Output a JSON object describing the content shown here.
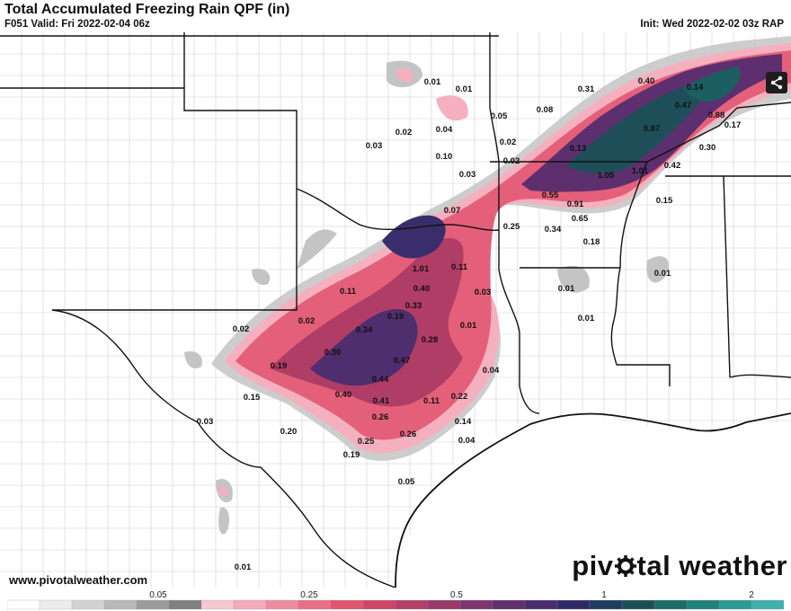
{
  "header": {
    "title": "Total Accumulated Freezing Rain QPF (in)",
    "valid": "F051 Valid: Fri 2022-02-04 06z",
    "init": "Init: Wed 2022-02-02 03z RAP"
  },
  "footer": {
    "website": "www.pivotalweather.com",
    "brand_left": "piv",
    "brand_right": "tal weather"
  },
  "legend": {
    "ticks": [
      "0.05",
      "0.25",
      "0.5",
      "1",
      "2"
    ],
    "colors": [
      "#ffffff",
      "#ececec",
      "#d2d2d2",
      "#b8b8b8",
      "#9c9c9c",
      "#808080",
      "#f7c8d2",
      "#f3aab9",
      "#ee8c9f",
      "#e96f86",
      "#e2556e",
      "#d04566",
      "#b53f67",
      "#993a6a",
      "#7c356d",
      "#602f6e",
      "#4a2d6d",
      "#2f2b67",
      "#1f3b5d",
      "#1d5055",
      "#1c6b66",
      "#1f827b",
      "#2e9a94",
      "#42b0ad"
    ]
  },
  "labels": [
    {
      "t": "0.01"
    },
    {
      "t": "0.01"
    },
    {
      "t": "0.31"
    },
    {
      "t": "0.40"
    },
    {
      "t": "0.14"
    },
    {
      "t": "0.47"
    },
    {
      "t": "0.88"
    },
    {
      "t": "0.17"
    },
    {
      "t": "0.05"
    },
    {
      "t": "0.08"
    },
    {
      "t": "0.02"
    },
    {
      "t": "0.04"
    },
    {
      "t": "0.03"
    },
    {
      "t": "0.87"
    },
    {
      "t": "0.02"
    },
    {
      "t": "0.13"
    },
    {
      "t": "0.30"
    },
    {
      "t": "0.10"
    },
    {
      "t": "0.02"
    },
    {
      "t": "1.05"
    },
    {
      "t": "1.01"
    },
    {
      "t": "0.42"
    },
    {
      "t": "0.03"
    },
    {
      "t": "0.55"
    },
    {
      "t": "0.91"
    },
    {
      "t": "0.15"
    },
    {
      "t": "0.07"
    },
    {
      "t": "0.65"
    },
    {
      "t": "0.25"
    },
    {
      "t": "0.34"
    },
    {
      "t": "0.18"
    },
    {
      "t": "1.01"
    },
    {
      "t": "0.11"
    },
    {
      "t": "0.01"
    },
    {
      "t": "0.40"
    },
    {
      "t": "0.11"
    },
    {
      "t": "0.03"
    },
    {
      "t": "0.01"
    },
    {
      "t": "0.33"
    },
    {
      "t": "0.01"
    },
    {
      "t": "0.02"
    },
    {
      "t": "0.02"
    },
    {
      "t": "0.19"
    },
    {
      "t": "0.34"
    },
    {
      "t": "0.01"
    },
    {
      "t": "0.28"
    },
    {
      "t": "0.30"
    },
    {
      "t": "0.47"
    },
    {
      "t": "0.19"
    },
    {
      "t": "0.04"
    },
    {
      "t": "0.44"
    },
    {
      "t": "0.15"
    },
    {
      "t": "0.40"
    },
    {
      "t": "0.41"
    },
    {
      "t": "0.11"
    },
    {
      "t": "0.22"
    },
    {
      "t": "0.03"
    },
    {
      "t": "0.26"
    },
    {
      "t": "0.14"
    },
    {
      "t": "0.20"
    },
    {
      "t": "0.26"
    },
    {
      "t": "0.25"
    },
    {
      "t": "0.04"
    },
    {
      "t": "0.19"
    },
    {
      "t": "0.05"
    },
    {
      "t": "0.01"
    }
  ]
}
